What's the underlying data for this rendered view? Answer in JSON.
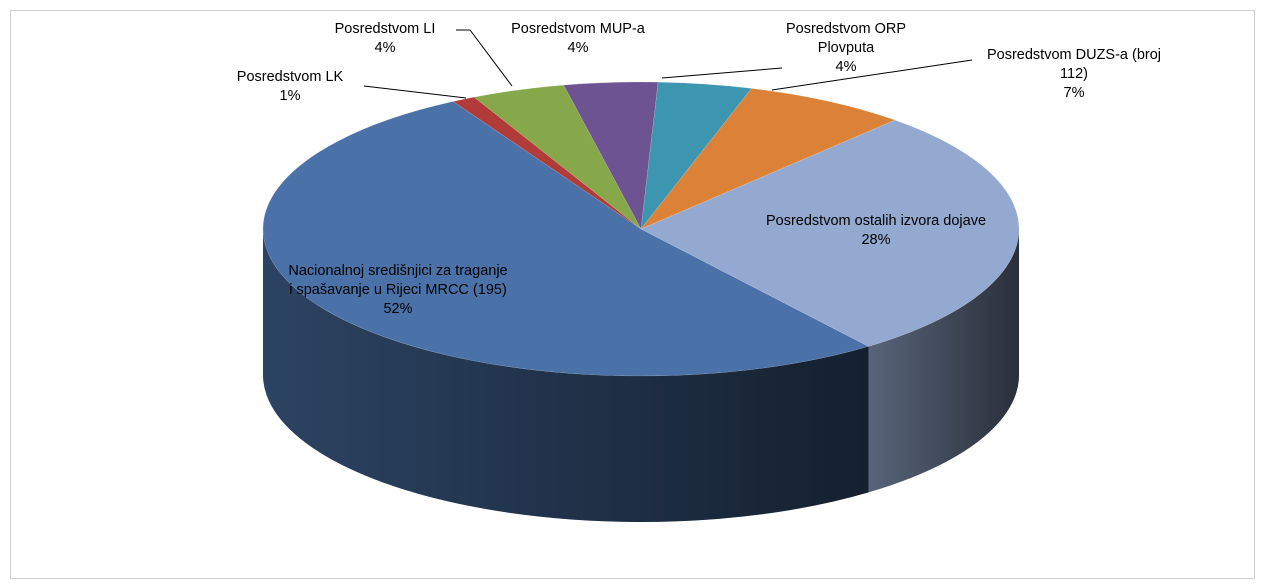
{
  "chart_data": {
    "type": "pie",
    "categories": [
      "Nacionalnoj središnjici za traganje i spašavanje u Rijeci MRCC (195)",
      "Posredstvom LK",
      "Posredstvom LI",
      "Posredstvom MUP-a",
      "Posredstvom ORP Plovputa",
      "Posredstvom DUZS-a (broj 112)",
      "Posredstvom ostalih izvora dojave"
    ],
    "values": [
      52,
      1,
      4,
      4,
      4,
      7,
      28
    ],
    "value_labels": [
      "52%",
      "1%",
      "4%",
      "4%",
      "4%",
      "7%",
      "28%"
    ],
    "colors": [
      "#4a72a8",
      "#b03b38",
      "#86a84a",
      "#6d5392",
      "#3d96b0",
      "#dc8138",
      "#94a9cf"
    ]
  }
}
